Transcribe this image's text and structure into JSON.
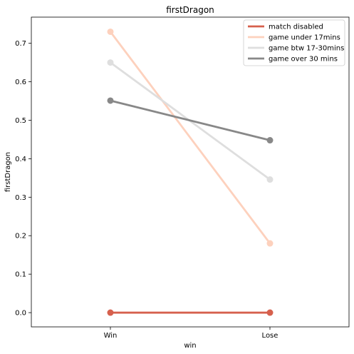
{
  "chart_data": {
    "type": "line",
    "title": "firstDragon",
    "xlabel": "win",
    "ylabel": "firstDragon",
    "categories": [
      "Win",
      "Lose"
    ],
    "ylim": [
      -0.037,
      0.768
    ],
    "yticks": [
      0.0,
      0.1,
      0.2,
      0.3,
      0.4,
      0.5,
      0.6,
      0.7
    ],
    "ytick_labels": [
      "0.0",
      "0.1",
      "0.2",
      "0.3",
      "0.4",
      "0.5",
      "0.6",
      "0.7"
    ],
    "grid": false,
    "legend_position": "top-right",
    "series": [
      {
        "name": "game under 17mins",
        "values": [
          0.73,
          0.18
        ],
        "color": "#fdd1bd"
      },
      {
        "name": "game btw 17-30mins",
        "values": [
          0.65,
          0.346
        ],
        "color": "#dedede"
      },
      {
        "name": "game over 30 mins",
        "values": [
          0.551,
          0.448
        ],
        "color": "#888888"
      },
      {
        "name": "match disabled",
        "values": [
          0.0,
          0.0
        ],
        "color": "#d6604d"
      }
    ],
    "legend_order": [
      "match disabled",
      "game under 17mins",
      "game btw 17-30mins",
      "game over 30 mins"
    ]
  }
}
